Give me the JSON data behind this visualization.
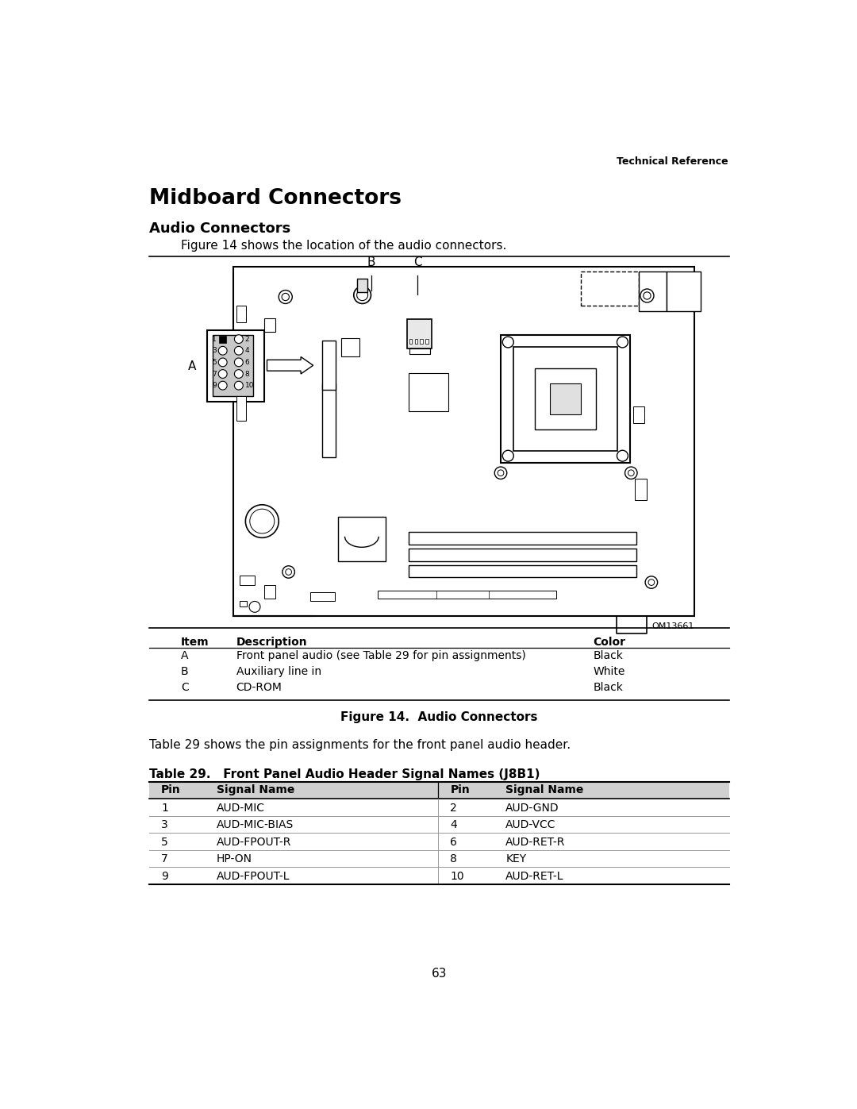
{
  "title_header": "Technical Reference",
  "page_title": "Midboard Connectors",
  "section_title": "Audio Connectors",
  "intro_text": "Figure 14 shows the location of the audio connectors.",
  "figure_caption": "Figure 14.  Audio Connectors",
  "table_intro": "Table 29 shows the pin assignments for the front panel audio header.",
  "table_title": "Table 29.   Front Panel Audio Header Signal Names (J8B1)",
  "table_headers": [
    "Pin",
    "Signal Name",
    "Pin",
    "Signal Name"
  ],
  "table_rows": [
    [
      "1",
      "AUD-MIC",
      "2",
      "AUD-GND"
    ],
    [
      "3",
      "AUD-MIC-BIAS",
      "4",
      "AUD-VCC"
    ],
    [
      "5",
      "AUD-FPOUT-R",
      "6",
      "AUD-RET-R"
    ],
    [
      "7",
      "HP-ON",
      "8",
      "KEY"
    ],
    [
      "9",
      "AUD-FPOUT-L",
      "10",
      "AUD-RET-L"
    ]
  ],
  "items_headers": [
    "Item",
    "Description",
    "Color"
  ],
  "items_rows": [
    [
      "A",
      "Front panel audio (see Table 29 for pin assignments)",
      "Black"
    ],
    [
      "B",
      "Auxiliary line in",
      "White"
    ],
    [
      "C",
      "CD-ROM",
      "Black"
    ]
  ],
  "page_number": "63",
  "bg_color": "#ffffff",
  "text_color": "#000000"
}
